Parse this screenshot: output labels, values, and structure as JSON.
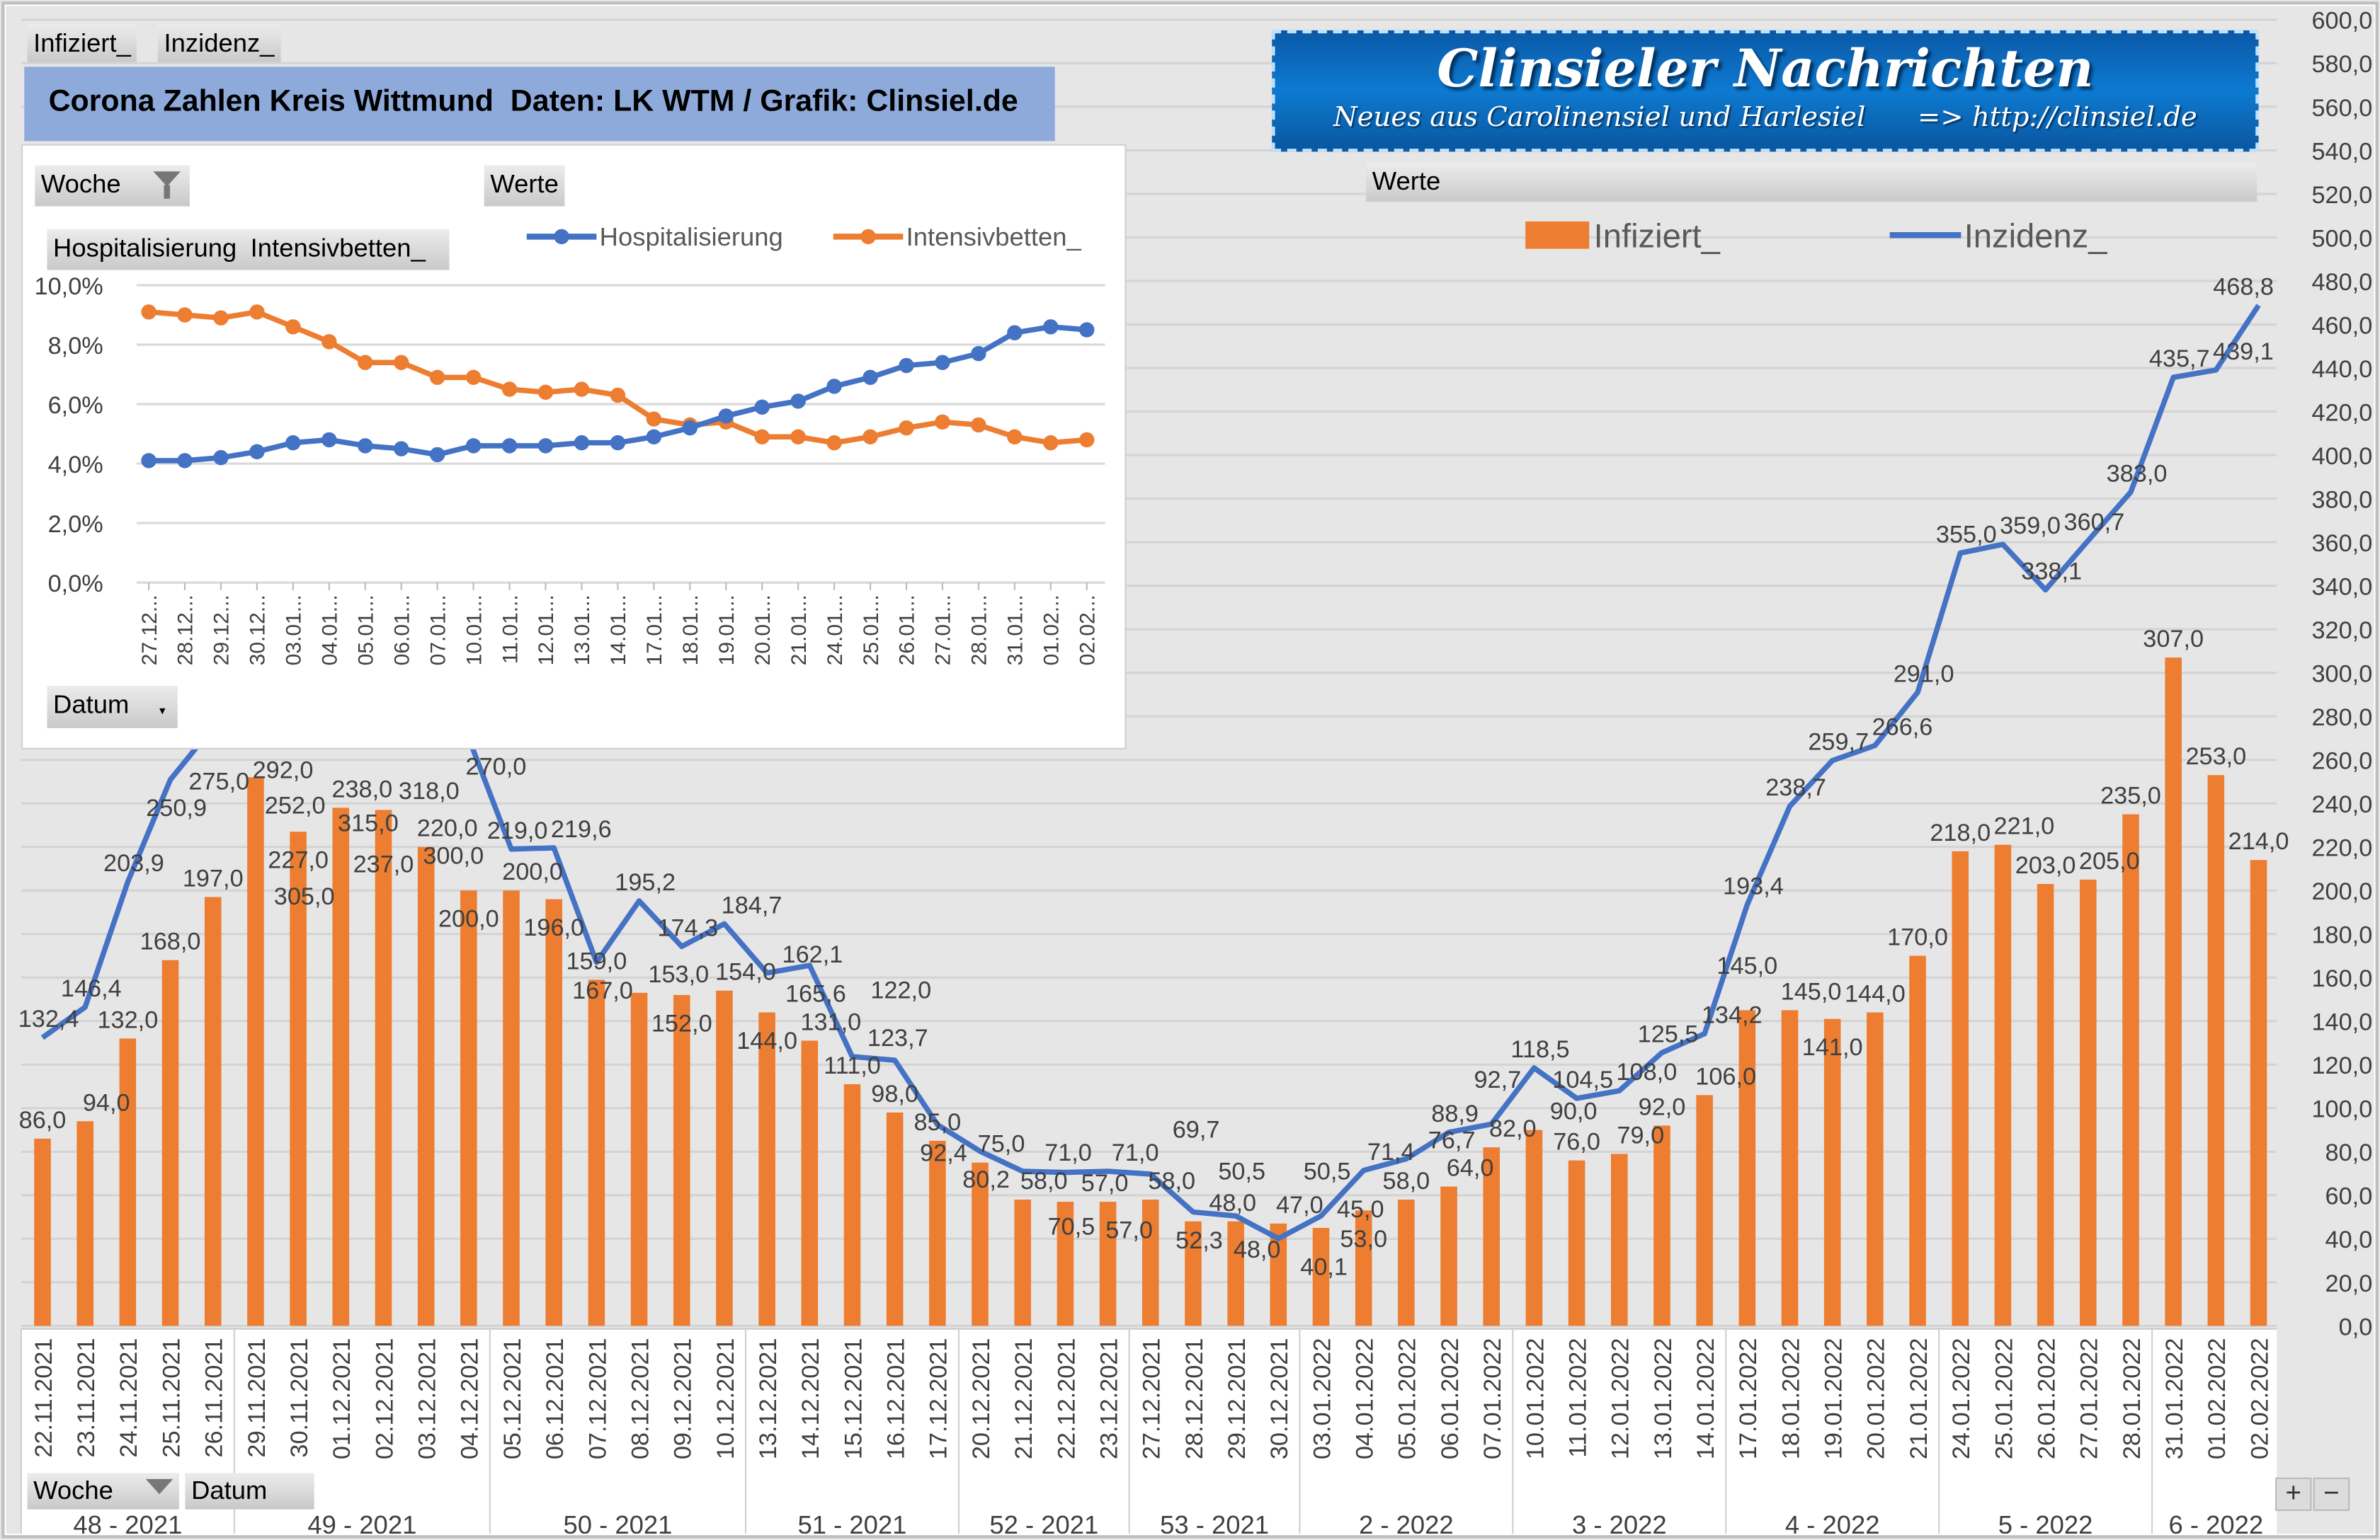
{
  "tabs": {
    "infiziert": "Infiziert_",
    "inzidenz": "Inzidenz_"
  },
  "title": "Corona Zahlen Kreis Wittmund  Daten: LK WTM / Grafik: Clinsiel.de",
  "logo": {
    "title": "Clinsieler Nachrichten",
    "subtitle": "Neues aus Carolinensiel und Harlesiel      => http://clinsiel.de"
  },
  "main": {
    "werte_label": "Werte",
    "filter_woche": "Woche",
    "filter_datum": "Datum",
    "zoom_in": "+",
    "zoom_out": "−"
  },
  "inset": {
    "filter_woche": "Woche",
    "werte_label": "Werte",
    "field_hosp": "Hospitalisierung",
    "field_int": "Intensivbetten_",
    "filter_datum": "Datum"
  },
  "colors": {
    "orange": "#ed7d31",
    "blue": "#4472c4",
    "title_bg": "#8eaadb",
    "plot_bg": "#e7e6e6"
  },
  "icons": {
    "filter": "funnel-icon",
    "dropdown": "chevron-down-icon"
  },
  "chart_data": [
    {
      "type": "bar+line",
      "categories": [
        "22.11.2021",
        "23.11.2021",
        "24.11.2021",
        "25.11.2021",
        "26.11.2021",
        "29.11.2021",
        "30.11.2021",
        "01.12.2021",
        "02.12.2021",
        "03.12.2021",
        "04.12.2021",
        "05.12.2021",
        "06.12.2021",
        "07.12.2021",
        "08.12.2021",
        "09.12.2021",
        "10.12.2021",
        "13.12.2021",
        "14.12.2021",
        "15.12.2021",
        "16.12.2021",
        "17.12.2021",
        "20.12.2021",
        "21.12.2021",
        "22.12.2021",
        "23.12.2021",
        "27.12.2021",
        "28.12.2021",
        "29.12.2021",
        "30.12.2021",
        "03.01.2022",
        "04.01.2022",
        "05.01.2022",
        "06.01.2022",
        "07.01.2022",
        "10.01.2022",
        "11.01.2022",
        "12.01.2022",
        "13.01.2022",
        "14.01.2022",
        "17.01.2022",
        "18.01.2022",
        "19.01.2022",
        "20.01.2022",
        "21.01.2022",
        "24.01.2022",
        "25.01.2022",
        "26.01.2022",
        "27.01.2022",
        "28.01.2022",
        "31.01.2022",
        "01.02.2022",
        "02.02.2022"
      ],
      "groups": [
        {
          "label": "48 - 2021",
          "count": 5
        },
        {
          "label": "49 - 2021",
          "count": 6
        },
        {
          "label": "50 - 2021",
          "count": 6
        },
        {
          "label": "51 - 2021",
          "count": 5
        },
        {
          "label": "52 - 2021",
          "count": 4
        },
        {
          "label": "53 - 2021",
          "count": 4
        },
        {
          "label": "2 - 2022",
          "count": 5
        },
        {
          "label": "3 - 2022",
          "count": 5
        },
        {
          "label": "4 - 2022",
          "count": 5
        },
        {
          "label": "5 - 2022",
          "count": 5
        },
        {
          "label": "6 - 2022",
          "count": 3
        }
      ],
      "series": [
        {
          "name": "Infiziert_",
          "type": "bar",
          "color": "#ed7d31",
          "values": [
            86,
            94,
            132,
            168,
            197,
            252,
            227,
            238,
            237,
            220,
            200,
            200,
            196,
            159,
            153,
            152,
            154,
            144,
            131,
            111,
            98,
            85,
            75,
            58,
            57,
            57,
            58,
            48,
            48,
            47,
            45,
            53,
            58,
            64,
            82,
            90,
            76,
            79,
            92,
            106,
            145,
            145,
            141,
            144,
            170,
            218,
            221,
            203,
            205,
            235,
            307,
            253,
            214
          ]
        },
        {
          "name": "Inzidenz_",
          "type": "line",
          "color": "#4472c4",
          "values": [
            132.4,
            146.4,
            203.9,
            250.9,
            275,
            292,
            305,
            315,
            318,
            300,
            270,
            219.0,
            219.6,
            167,
            195.2,
            174.3,
            184.7,
            162.1,
            165.6,
            123.7,
            122.0,
            92.4,
            80.2,
            71.0,
            70.5,
            71.0,
            69.7,
            52.3,
            50.5,
            40.1,
            50.5,
            71.4,
            76.7,
            88.9,
            92.7,
            118.5,
            104.5,
            108.0,
            125.5,
            134.2,
            193.4,
            238.7,
            259.7,
            266.6,
            291.0,
            355.0,
            359.0,
            338.1,
            360.7,
            383.0,
            435.7,
            439.1,
            468.8
          ]
        }
      ],
      "ylim": [
        0,
        600
      ],
      "ystep": 20,
      "yaxis_side": "right",
      "decimal_separator": ",",
      "grid": true,
      "legend": "top",
      "data_labels": true
    },
    {
      "type": "line",
      "categories": [
        "27.12...",
        "28.12...",
        "29.12...",
        "30.12...",
        "03.01...",
        "04.01...",
        "05.01...",
        "06.01...",
        "07.01...",
        "10.01...",
        "11.01...",
        "12.01...",
        "13.01...",
        "14.01...",
        "17.01...",
        "18.01...",
        "19.01...",
        "20.01...",
        "21.01...",
        "24.01...",
        "25.01...",
        "26.01...",
        "27.01...",
        "28.01...",
        "31.01...",
        "01.02...",
        "02.02..."
      ],
      "series": [
        {
          "name": "Hospitalisierung",
          "color": "#4472c4",
          "values": [
            4.1,
            4.1,
            4.2,
            4.4,
            4.7,
            4.8,
            4.6,
            4.5,
            4.3,
            4.6,
            4.6,
            4.6,
            4.7,
            4.7,
            4.9,
            5.2,
            5.6,
            5.9,
            6.1,
            6.6,
            6.9,
            7.3,
            7.4,
            7.7,
            8.4,
            8.6,
            8.5
          ]
        },
        {
          "name": "Intensivbetten_",
          "color": "#ed7d31",
          "values": [
            9.1,
            9.0,
            8.9,
            9.1,
            8.6,
            8.1,
            7.4,
            7.4,
            6.9,
            6.9,
            6.5,
            6.4,
            6.5,
            6.3,
            5.5,
            5.3,
            5.4,
            4.9,
            4.9,
            4.7,
            4.9,
            5.2,
            5.4,
            5.3,
            4.9,
            4.7,
            4.8
          ]
        }
      ],
      "ylim": [
        0,
        10
      ],
      "ystep": 2,
      "yunit": "%",
      "grid": true,
      "legend": "top",
      "markers": true
    }
  ]
}
